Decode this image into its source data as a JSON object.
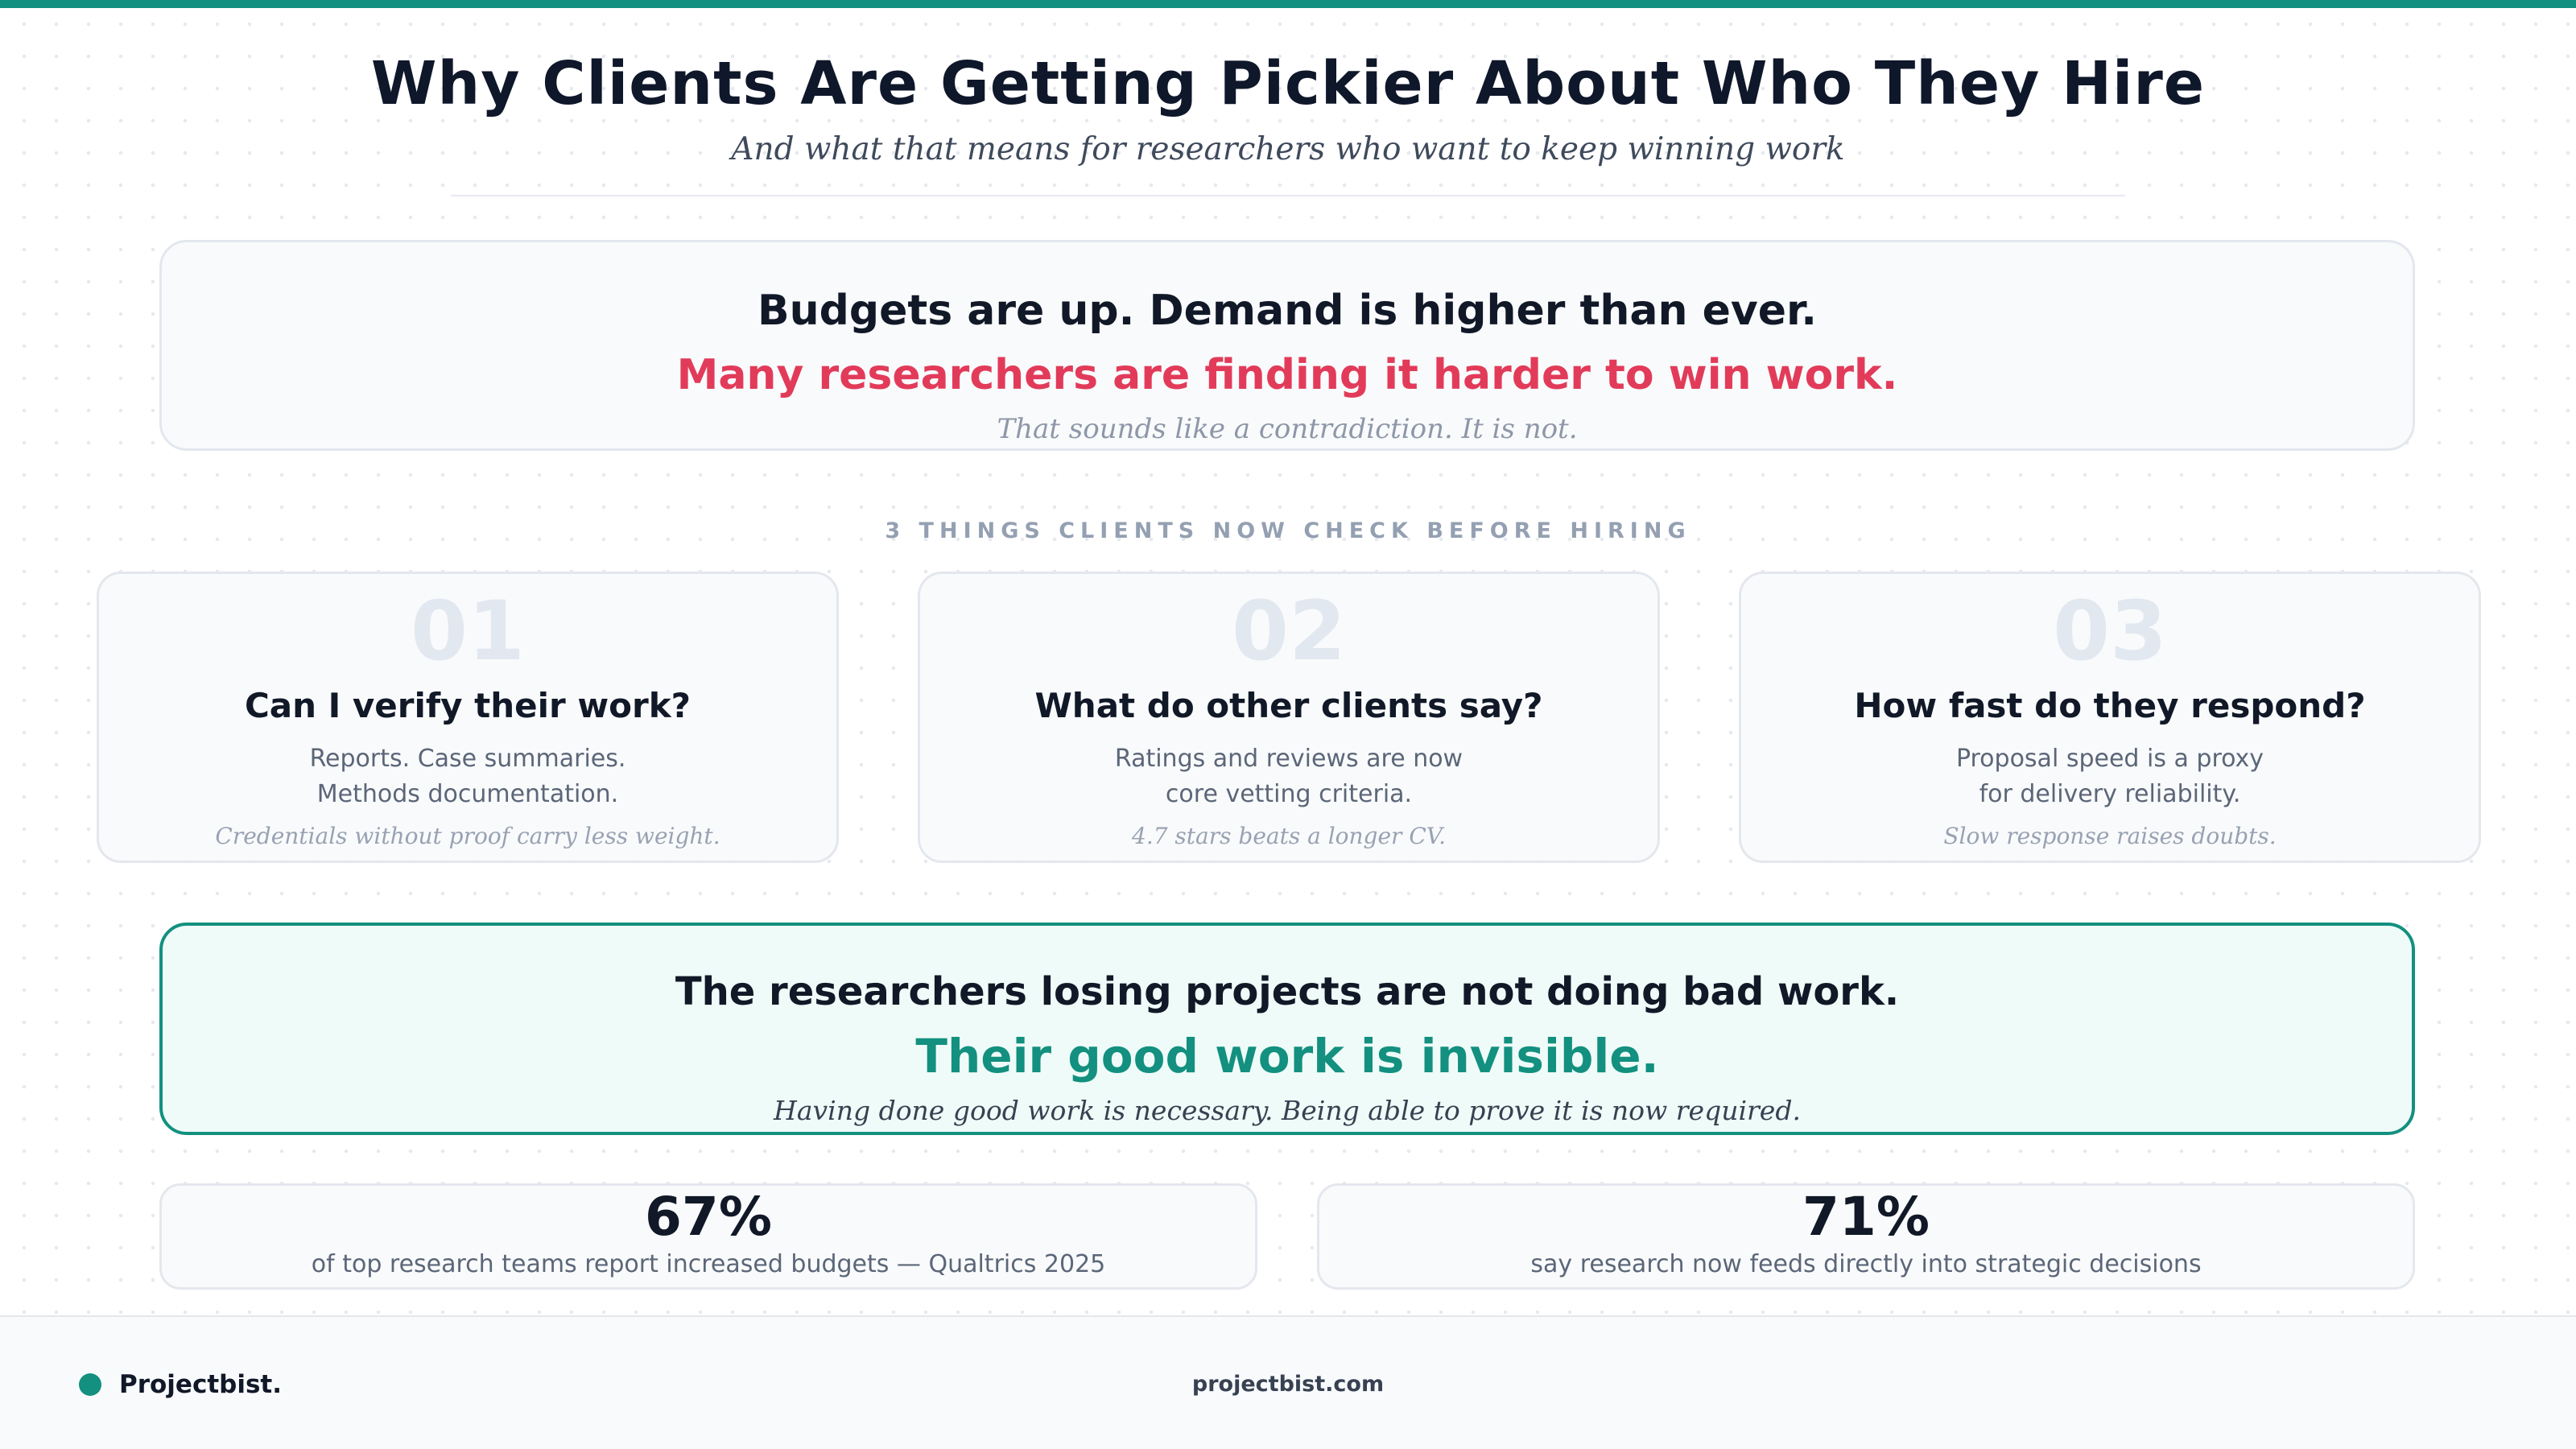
{
  "header": {
    "title": "Why Clients Are Getting Pickier About Who They Hire",
    "subtitle": "And what that means for researchers who want to keep winning work"
  },
  "hero": {
    "line1": "Budgets are up. Demand is higher than ever.",
    "line2": "Many researchers are finding it harder to win work.",
    "note": "That sounds like a contradiction. It is not."
  },
  "section_label": "3 THINGS CLIENTS NOW CHECK BEFORE HIRING",
  "cards": [
    {
      "number": "01",
      "question": "Can I verify their work?",
      "body": [
        "Reports. Case summaries.",
        "Methods documentation."
      ],
      "tagline": "Credentials without proof carry less weight."
    },
    {
      "number": "02",
      "question": "What do other clients say?",
      "body": [
        "Ratings and reviews are now",
        "core vetting criteria."
      ],
      "tagline": "4.7 stars beats a longer CV."
    },
    {
      "number": "03",
      "question": "How fast do they respond?",
      "body": [
        "Proposal speed is a proxy",
        "for delivery reliability."
      ],
      "tagline": "Slow response raises doubts."
    }
  ],
  "insight": {
    "line1": "The researchers losing projects are not doing bad work.",
    "line2": "Their good work is invisible.",
    "note": "Having done good work is necessary. Being able to prove it is now required."
  },
  "stats": [
    {
      "value": "67%",
      "label": "of top research teams report increased budgets — Qualtrics 2025"
    },
    {
      "value": "71%",
      "label": "say research now feeds directly into strategic decisions"
    }
  ],
  "footer": {
    "brand": "Projectbist.",
    "url": "projectbist.com"
  },
  "colors": {
    "accent": "#13907f",
    "highlight": "#e23b5a",
    "text": "#0f172a"
  }
}
